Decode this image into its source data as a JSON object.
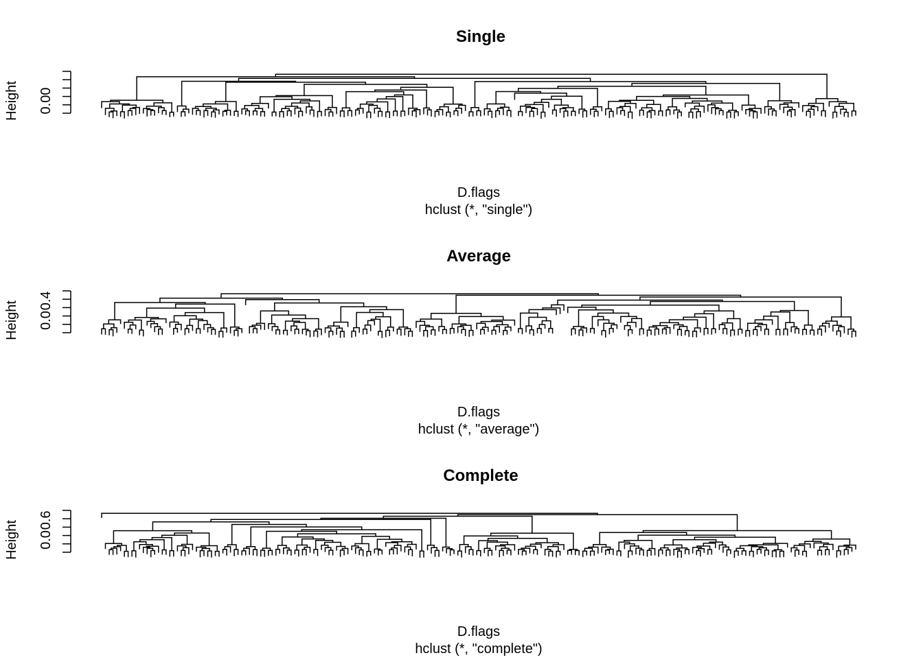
{
  "chart_data": [
    {
      "type": "dendrogram",
      "title": "Single",
      "xlabel": "D.flags",
      "sublabel": "hclust (*, \"single\")",
      "ylabel": "Height",
      "y_ticks": [
        "0.00"
      ],
      "ylim": [
        0,
        0.05
      ],
      "leaf_count": 200,
      "seed": 11,
      "method": "single"
    },
    {
      "type": "dendrogram",
      "title": "Average",
      "xlabel": "D.flags",
      "sublabel": "hclust (*, \"average\")",
      "ylabel": "Height",
      "y_ticks": [
        "0.0",
        "0.4"
      ],
      "ylim": [
        0,
        0.45
      ],
      "leaf_count": 200,
      "seed": 23,
      "method": "average"
    },
    {
      "type": "dendrogram",
      "title": "Complete",
      "xlabel": "D.flags",
      "sublabel": "hclust (*, \"complete\")",
      "ylabel": "Height",
      "y_ticks": [
        "0.0",
        "0.6"
      ],
      "ylim": [
        0,
        0.7
      ],
      "leaf_count": 200,
      "seed": 37,
      "method": "complete"
    }
  ]
}
